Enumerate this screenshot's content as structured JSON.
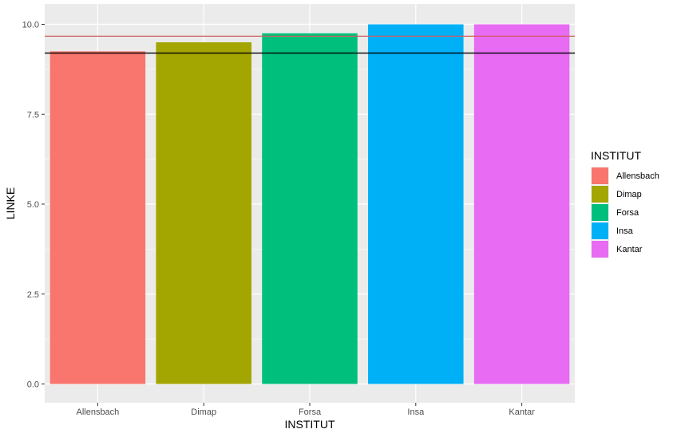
{
  "chart_data": {
    "type": "bar",
    "xlabel": "INSTITUT",
    "ylabel": "LINKE",
    "categories": [
      "Allensbach",
      "Dimap",
      "Forsa",
      "Insa",
      "Kantar"
    ],
    "values": [
      9.25,
      9.5,
      9.75,
      10.0,
      10.0
    ],
    "colors": [
      "#F8766D",
      "#A3A500",
      "#00BF7D",
      "#00B0F6",
      "#E76BF3"
    ],
    "ylim": [
      0,
      10.2
    ],
    "yticks": [
      "0.0",
      "2.5",
      "5.0",
      "7.5",
      "10.0"
    ],
    "ytick_values": [
      0,
      2.5,
      5,
      7.5,
      10
    ],
    "reference_lines": [
      {
        "value": 9.67,
        "color": "#CD5C5C"
      },
      {
        "value": 9.2,
        "color": "#000000"
      }
    ],
    "legend": {
      "title": "INSTITUT",
      "placement": "right",
      "entries": [
        "Allensbach",
        "Dimap",
        "Forsa",
        "Insa",
        "Kantar"
      ]
    },
    "grid": true,
    "panel_background": "#EBEBEB"
  }
}
